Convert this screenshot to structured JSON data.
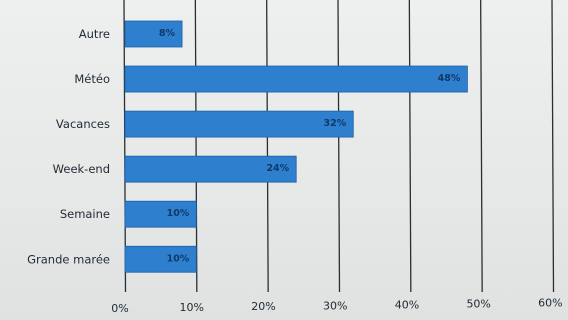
{
  "chart_data": {
    "type": "bar",
    "orientation": "horizontal",
    "categories": [
      "Autre",
      "Météo",
      "Vacances",
      "Week-end",
      "Semaine",
      "Grande marée"
    ],
    "values": [
      8,
      48,
      32,
      24,
      10,
      10
    ],
    "data_labels": [
      "8%",
      "48%",
      "32%",
      "24%",
      "10%",
      "10%"
    ],
    "x_ticks": [
      0,
      10,
      20,
      30,
      40,
      50,
      60
    ],
    "x_tick_labels": [
      "0%",
      "10%",
      "20%",
      "30%",
      "40%",
      "50%",
      "60%"
    ],
    "xlim": [
      0,
      60
    ],
    "title": "",
    "xlabel": "",
    "ylabel": "",
    "grid": true,
    "legend": false,
    "bar_color": "#2f7fcf",
    "bar_border_color": "#1d5fa6"
  }
}
